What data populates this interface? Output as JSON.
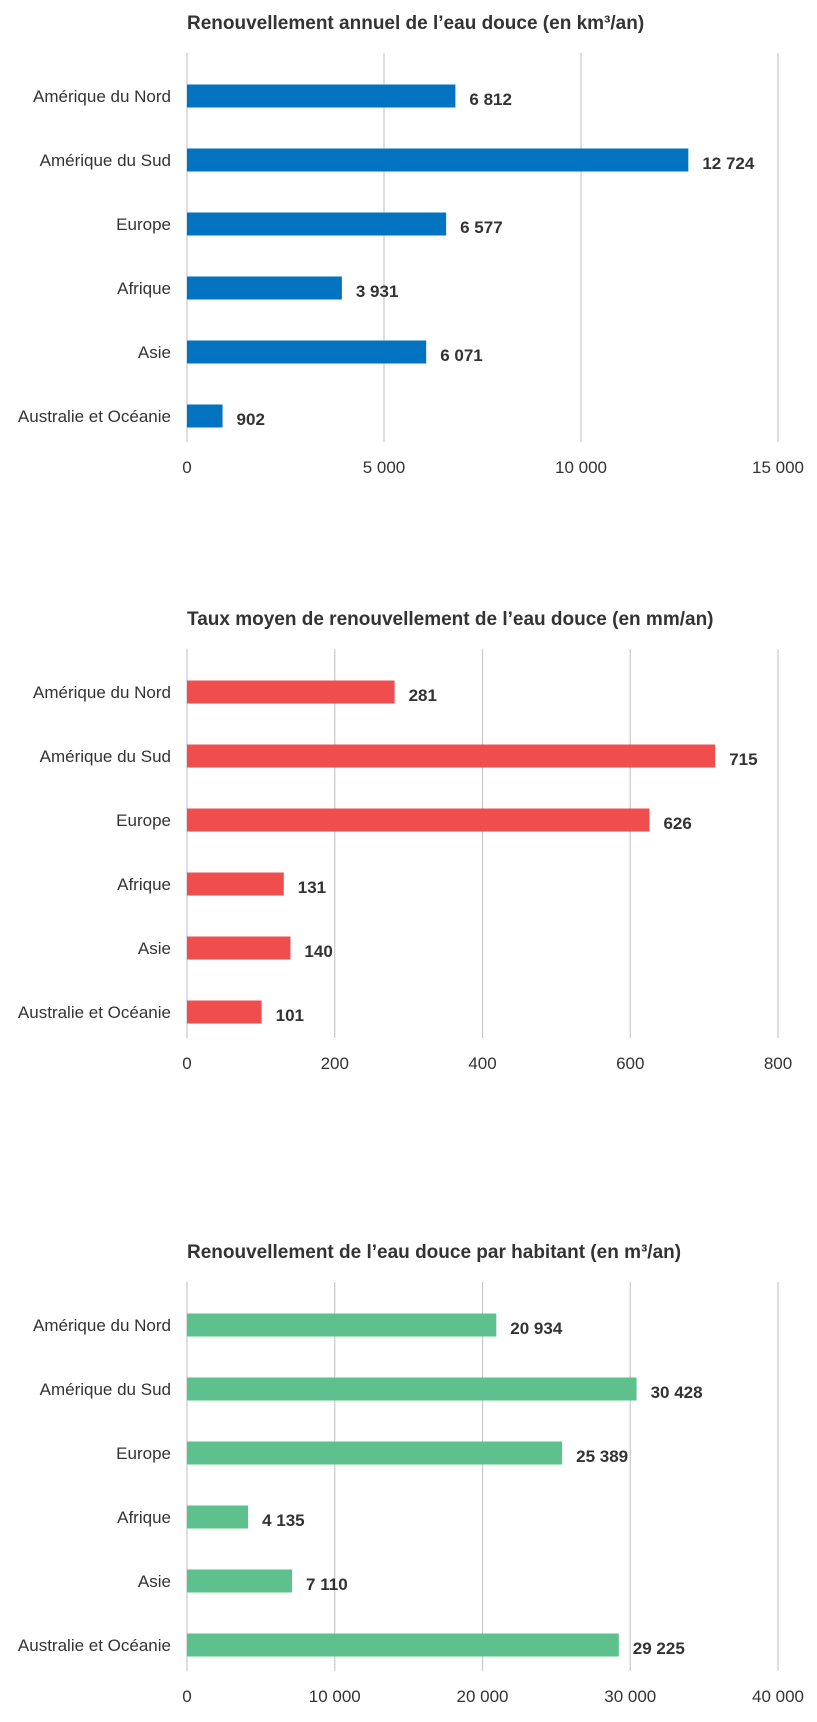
{
  "chart_data": [
    {
      "type": "bar",
      "orientation": "horizontal",
      "title": "Renouvellement annuel de l’eau douce (en km³/an)",
      "categories": [
        "Amérique du Nord",
        "Amérique du Sud",
        "Europe",
        "Afrique",
        "Asie",
        "Australie et Océanie"
      ],
      "values": [
        6812,
        12724,
        6577,
        3931,
        6071,
        902
      ],
      "value_labels": [
        "6 812",
        "12 724",
        "6 577",
        "3 931",
        "6 071",
        "902"
      ],
      "xlim": [
        0,
        15000
      ],
      "ticks": [
        0,
        5000,
        10000,
        15000
      ],
      "tick_labels": [
        "0",
        "5 000",
        "10 000",
        "15 000"
      ],
      "grid": true,
      "color": "#0173c1"
    },
    {
      "type": "bar",
      "orientation": "horizontal",
      "title": "Taux moyen de renouvellement de l’eau douce (en mm/an)",
      "categories": [
        "Amérique du Nord",
        "Amérique du Sud",
        "Europe",
        "Afrique",
        "Asie",
        "Australie et Océanie"
      ],
      "values": [
        281,
        715,
        626,
        131,
        140,
        101
      ],
      "value_labels": [
        "281",
        "715",
        "626",
        "131",
        "140",
        "101"
      ],
      "xlim": [
        0,
        800
      ],
      "ticks": [
        0,
        200,
        400,
        600,
        800
      ],
      "tick_labels": [
        "0",
        "200",
        "400",
        "600",
        "800"
      ],
      "grid": true,
      "color": "#f04d4f"
    },
    {
      "type": "bar",
      "orientation": "horizontal",
      "title": "Renouvellement de l’eau douce par habitant (en m³/an)",
      "categories": [
        "Amérique du Nord",
        "Amérique du Sud",
        "Europe",
        "Afrique",
        "Asie",
        "Australie et Océanie"
      ],
      "values": [
        20934,
        30428,
        25389,
        4135,
        7110,
        29225
      ],
      "value_labels": [
        "20 934",
        "30 428",
        "25 389",
        "4 135",
        "7 110",
        "29 225"
      ],
      "xlim": [
        0,
        40000
      ],
      "ticks": [
        0,
        10000,
        20000,
        30000,
        40000
      ],
      "tick_labels": [
        "0",
        "10 000",
        "20 000",
        "30 000",
        "40 000"
      ],
      "grid": true,
      "color": "#5ec18d"
    }
  ]
}
